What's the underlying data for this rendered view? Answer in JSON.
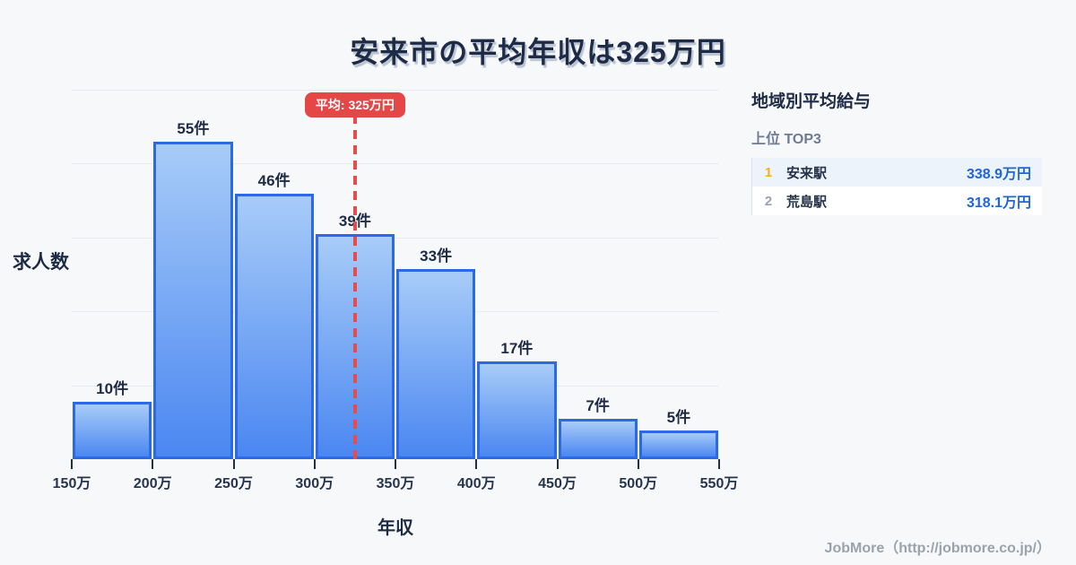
{
  "title": "安来市の平均年収は325万円",
  "chart_data": {
    "type": "bar",
    "title": "安来市の平均年収は325万円",
    "xlabel": "年収",
    "ylabel": "求人数",
    "categories": [
      "150万",
      "200万",
      "250万",
      "300万",
      "350万",
      "400万",
      "450万",
      "500万",
      "550万"
    ],
    "values": [
      10,
      55,
      46,
      39,
      33,
      17,
      7,
      5
    ],
    "bar_labels": [
      "10件",
      "55件",
      "46件",
      "39件",
      "33件",
      "17件",
      "7件",
      "5件"
    ],
    "unit": "件",
    "xlim": [
      150,
      550
    ],
    "ylim": [
      0,
      64
    ],
    "grid": true,
    "legend": false,
    "mean_line": {
      "value": 325,
      "label": "平均: 325万円"
    },
    "colors": {
      "bar_fill_top": "#a8ccf8",
      "bar_fill_bottom": "#4b87f1",
      "bar_border": "#2b6ae4",
      "mean_line": "#e74b4b",
      "mean_label_bg": "#e54747"
    }
  },
  "side_panel": {
    "title": "地域別平均給与",
    "subtitle": "上位 TOP3",
    "rows": [
      {
        "rank": "1",
        "station": "安来駅",
        "value": "338.9万円"
      },
      {
        "rank": "2",
        "station": "荒島駅",
        "value": "318.1万円"
      }
    ]
  },
  "footer": {
    "credit": "JobMore（http://jobmore.co.jp/）"
  }
}
